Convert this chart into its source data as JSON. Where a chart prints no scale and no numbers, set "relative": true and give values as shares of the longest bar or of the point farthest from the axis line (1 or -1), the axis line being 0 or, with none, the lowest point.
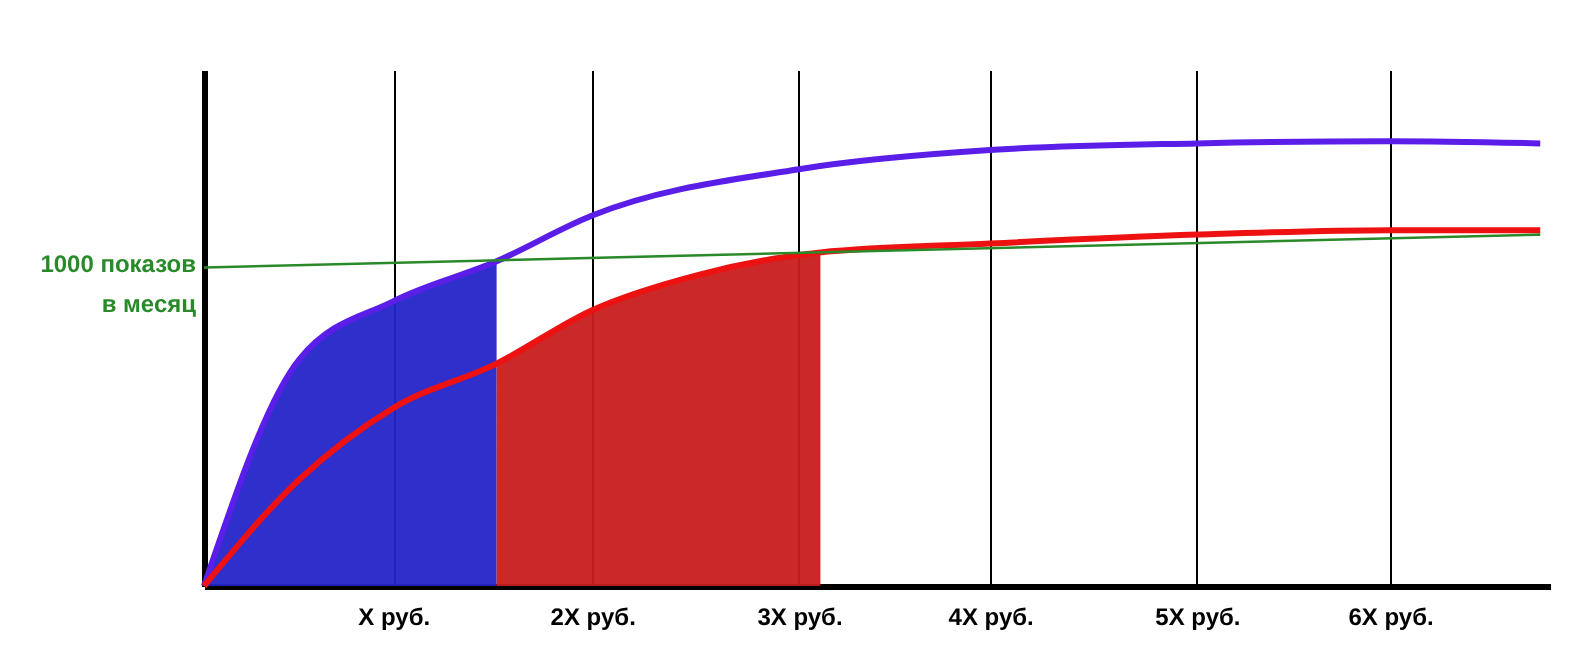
{
  "chart_data": {
    "type": "line",
    "relative": true,
    "grid": "x",
    "marker": "none",
    "line_style": "solid",
    "xlim": [
      0,
      6.9
    ],
    "xticks": [
      {
        "value": 0.97,
        "label": "X руб."
      },
      {
        "value": 1.99,
        "label": "2X руб."
      },
      {
        "value": 3.05,
        "label": "3X руб."
      },
      {
        "value": 4.03,
        "label": "4X руб."
      },
      {
        "value": 5.09,
        "label": "5X руб."
      },
      {
        "value": 6.08,
        "label": "6X руб."
      }
    ],
    "series": [
      {
        "type": "area",
        "color": "#2424c8",
        "x": [
          0,
          0.49,
          0.97,
          1.5
        ],
        "values": [
          0,
          0.51,
          0.64,
          0.73
        ]
      },
      {
        "type": "area",
        "color": "#c81e1e",
        "x": [
          1.5,
          1.99,
          2.54,
          3.16
        ],
        "values": [
          0.5,
          0.62,
          0.7,
          0.75
        ]
      },
      {
        "color": "#5a1ee8",
        "x": [
          0,
          0.49,
          0.97,
          1.5,
          1.99,
          3.05,
          4.03,
          5.09,
          6.08,
          6.85
        ],
        "values": [
          0,
          0.51,
          0.64,
          0.73,
          0.833,
          0.937,
          0.98,
          0.995,
          1.0,
          0.995
        ]
      },
      {
        "color": "#ee1111",
        "x": [
          0,
          0.49,
          0.97,
          1.5,
          1.99,
          2.54,
          3.16,
          4.03,
          5.09,
          6.08,
          6.85
        ],
        "values": [
          0,
          0.24,
          0.4,
          0.5,
          0.62,
          0.7,
          0.75,
          0.77,
          0.79,
          0.8,
          0.8
        ]
      },
      {
        "color": "#2a8a2a",
        "x": [
          0,
          6.85
        ],
        "values": [
          0.716,
          0.79
        ]
      }
    ],
    "annotations": [
      {
        "text": "1000 показов\nв месяц",
        "x": 0,
        "y": 0.716
      }
    ]
  }
}
